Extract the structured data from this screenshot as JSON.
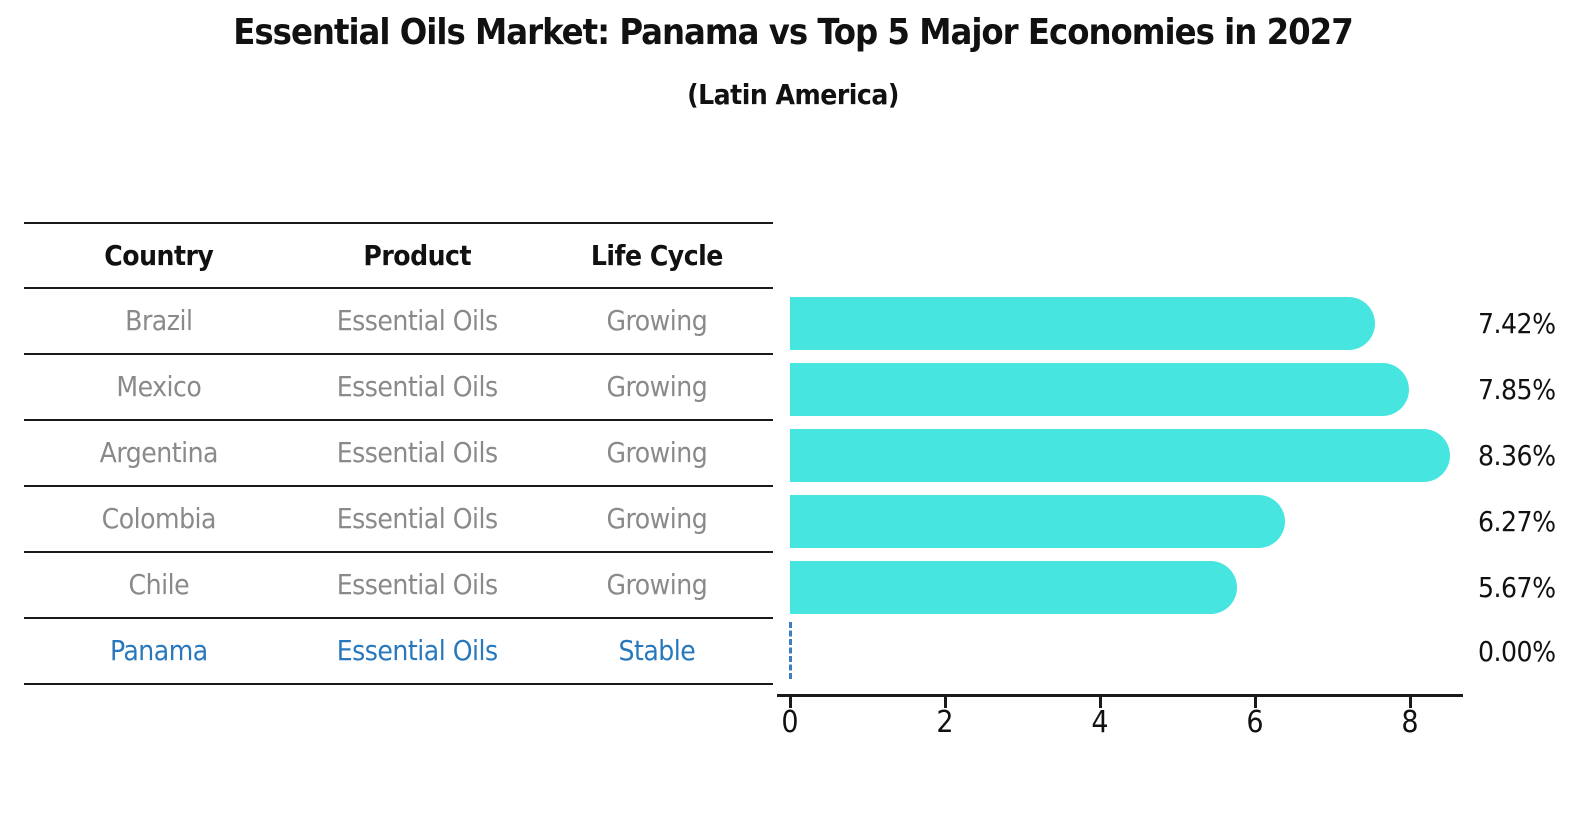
{
  "title": "Essential Oils Market: Panama vs Top 5 Major Economies in 2027",
  "subtitle": "(Latin America)",
  "table": {
    "headers": [
      "Country",
      "Product",
      "Life Cycle"
    ],
    "rows": [
      {
        "country": "Brazil",
        "product": "Essential Oils",
        "life_cycle": "Growing",
        "highlight": false
      },
      {
        "country": "Mexico",
        "product": "Essential Oils",
        "life_cycle": "Growing",
        "highlight": false
      },
      {
        "country": "Argentina",
        "product": "Essential Oils",
        "life_cycle": "Growing",
        "highlight": false
      },
      {
        "country": "Colombia",
        "product": "Essential Oils",
        "life_cycle": "Growing",
        "highlight": false
      },
      {
        "country": "Chile",
        "product": "Essential Oils",
        "life_cycle": "Growing",
        "highlight": false
      },
      {
        "country": "Panama",
        "product": "Essential Oils",
        "life_cycle": "Stable",
        "highlight": true
      }
    ]
  },
  "chart_data": {
    "type": "bar",
    "orientation": "horizontal",
    "title": "Essential Oils Market: Panama vs Top 5 Major Economies in 2027",
    "subtitle": "(Latin America)",
    "categories": [
      "Brazil",
      "Mexico",
      "Argentina",
      "Colombia",
      "Chile",
      "Panama"
    ],
    "values": [
      7.42,
      7.85,
      8.36,
      6.27,
      5.67,
      0.0
    ],
    "value_labels": [
      "7.42%",
      "7.85%",
      "8.36%",
      "6.27%",
      "5.67%",
      "0.00%"
    ],
    "x_ticks": [
      0,
      2,
      4,
      6,
      8
    ],
    "x_tick_labels": [
      "0",
      "2",
      "4",
      "6",
      "8"
    ],
    "xlim": [
      0,
      8.7
    ],
    "grid": false,
    "legend": "none",
    "bar_color": "#46e5e0",
    "highlight_color": "#2878be",
    "zero_marker_color": "#3b7fc0",
    "row_text_color": "#8a8a8a",
    "axis_color": "#1a1a1a"
  }
}
